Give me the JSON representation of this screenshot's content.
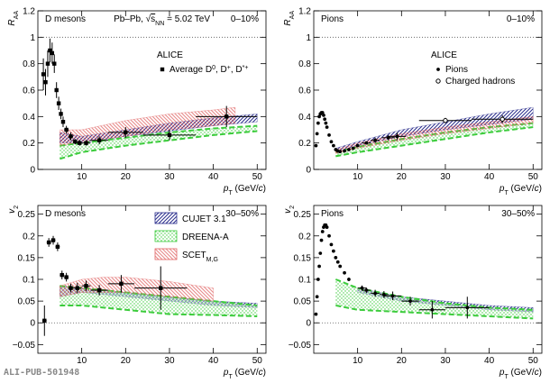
{
  "chart_data": [
    {
      "type": "scatter",
      "title": "D mesons",
      "centrality": "0–10%",
      "system": [
        "Pb–Pb, ",
        "√",
        "s",
        "NN",
        " = 5.02 TeV"
      ],
      "experiment": "ALICE",
      "x_label": [
        "p",
        "T",
        " (GeV/",
        "c",
        ")"
      ],
      "y_label": [
        "R",
        "AA"
      ],
      "xlim": [
        0,
        52
      ],
      "xticks": [
        10,
        20,
        30,
        40,
        50
      ],
      "ylim": [
        0,
        1.2
      ],
      "yticks": [
        0,
        0.2,
        0.4,
        0.6,
        0.8,
        1,
        1.2
      ],
      "reference_line": 1,
      "series": [
        {
          "name": [
            "Average D",
            "0",
            ", D",
            "+",
            ", D",
            "*+"
          ],
          "marker": "square",
          "color": "#000000",
          "x": [
            1.25,
            1.75,
            2.25,
            2.75,
            3.25,
            3.75,
            4.25,
            4.75,
            5.25,
            5.75,
            6.5,
            7.5,
            8.5,
            9.5,
            11,
            14,
            20,
            30,
            43
          ],
          "y": [
            0.72,
            0.66,
            0.8,
            0.9,
            0.88,
            0.8,
            0.6,
            0.5,
            0.42,
            0.36,
            0.3,
            0.25,
            0.21,
            0.2,
            0.2,
            0.22,
            0.28,
            0.26,
            0.4
          ],
          "yerr": [
            0.12,
            0.1,
            0.1,
            0.09,
            0.08,
            0.07,
            0.06,
            0.05,
            0.04,
            0.04,
            0.03,
            0.03,
            0.02,
            0.02,
            0.02,
            0.03,
            0.04,
            0.04,
            0.08
          ],
          "xerr": [
            0.25,
            0.25,
            0.25,
            0.25,
            0.25,
            0.25,
            0.25,
            0.25,
            0.25,
            0.25,
            0.5,
            0.5,
            0.5,
            0.5,
            1,
            2,
            4,
            6,
            7
          ]
        }
      ],
      "bands": [
        {
          "color": "#2a2d8c",
          "fill": "hatch",
          "x": [
            5,
            10,
            20,
            30,
            40,
            50
          ],
          "low": [
            0.2,
            0.2,
            0.25,
            0.29,
            0.33,
            0.36
          ],
          "high": [
            0.28,
            0.25,
            0.3,
            0.35,
            0.39,
            0.42
          ]
        },
        {
          "color": "#3ccc3c",
          "fill": "dots",
          "x": [
            5,
            10,
            20,
            30,
            40,
            50
          ],
          "low": [
            0.08,
            0.13,
            0.18,
            0.22,
            0.26,
            0.29
          ],
          "high": [
            0.18,
            0.2,
            0.24,
            0.28,
            0.31,
            0.33
          ]
        },
        {
          "color": "#e06464",
          "fill": "hatch-back",
          "x": [
            5,
            10,
            20,
            30,
            40,
            45
          ],
          "low": [
            0.18,
            0.21,
            0.25,
            0.3,
            0.33,
            0.35
          ],
          "high": [
            0.3,
            0.3,
            0.37,
            0.42,
            0.45,
            0.47
          ]
        }
      ]
    },
    {
      "type": "scatter",
      "title": "Pions",
      "centrality": "0–10%",
      "experiment": "ALICE",
      "x_label": [
        "p",
        "T",
        " (GeV/",
        "c",
        ")"
      ],
      "y_label": [
        "R",
        "AA"
      ],
      "xlim": [
        0,
        52
      ],
      "xticks": [
        10,
        20,
        30,
        40,
        50
      ],
      "ylim": [
        0,
        1.2
      ],
      "yticks": [
        0,
        0.2,
        0.4,
        0.6,
        0.8,
        1,
        1.2
      ],
      "reference_line": 1,
      "series": [
        {
          "name": "Pions",
          "marker": "circle",
          "color": "#000000",
          "x": [
            0.5,
            0.75,
            1,
            1.25,
            1.5,
            1.75,
            2,
            2.25,
            2.5,
            2.75,
            3,
            3.5,
            4,
            4.5,
            5,
            5.5,
            6,
            7,
            8,
            9,
            10,
            12,
            14,
            17,
            19
          ],
          "y": [
            0.18,
            0.27,
            0.35,
            0.4,
            0.42,
            0.43,
            0.43,
            0.41,
            0.38,
            0.35,
            0.32,
            0.26,
            0.21,
            0.18,
            0.15,
            0.14,
            0.135,
            0.14,
            0.15,
            0.16,
            0.18,
            0.2,
            0.22,
            0.24,
            0.25
          ],
          "yerr": [
            0.01,
            0.01,
            0.01,
            0.01,
            0.01,
            0.01,
            0.01,
            0.01,
            0.01,
            0.01,
            0.01,
            0.01,
            0.01,
            0.01,
            0.01,
            0.01,
            0.01,
            0.01,
            0.01,
            0.01,
            0.01,
            0.01,
            0.02,
            0.02,
            0.03
          ],
          "xerr": [
            0,
            0,
            0,
            0,
            0,
            0,
            0,
            0,
            0,
            0,
            0,
            0,
            0,
            0,
            0,
            0,
            0,
            0,
            0,
            0,
            0,
            1,
            1,
            1.5,
            2
          ]
        },
        {
          "name": "Charged hadrons",
          "marker": "circle-open",
          "color": "#000000",
          "x": [
            30,
            43
          ],
          "y": [
            0.37,
            0.38
          ],
          "yerr": [
            0.02,
            0.03
          ],
          "xerr": [
            6,
            7
          ]
        }
      ],
      "bands": [
        {
          "color": "#2a2d8c",
          "fill": "hatch",
          "x": [
            5,
            10,
            20,
            30,
            40,
            50
          ],
          "low": [
            0.13,
            0.18,
            0.25,
            0.3,
            0.34,
            0.38
          ],
          "high": [
            0.16,
            0.21,
            0.3,
            0.36,
            0.42,
            0.47
          ]
        },
        {
          "color": "#3ccc3c",
          "fill": "dots",
          "x": [
            5,
            10,
            20,
            30,
            40,
            50
          ],
          "low": [
            0.1,
            0.13,
            0.18,
            0.23,
            0.28,
            0.32
          ],
          "high": [
            0.13,
            0.17,
            0.23,
            0.28,
            0.32,
            0.35
          ]
        },
        {
          "color": "#e06464",
          "fill": "hatch-back",
          "x": [
            5,
            10,
            20,
            30,
            40,
            50
          ],
          "low": [
            0.12,
            0.16,
            0.22,
            0.27,
            0.31,
            0.35
          ],
          "high": [
            0.15,
            0.2,
            0.27,
            0.32,
            0.36,
            0.4
          ]
        }
      ]
    },
    {
      "type": "scatter",
      "title": "D mesons",
      "centrality": "30–50%",
      "x_label": [
        "p",
        "T",
        " (GeV/",
        "c",
        ")"
      ],
      "y_label": [
        "v",
        "2"
      ],
      "xlim": [
        0,
        52
      ],
      "xticks": [
        10,
        20,
        30,
        40,
        50
      ],
      "ylim": [
        -0.07,
        0.27
      ],
      "yticks": [
        {
          "value": -0.05,
          "label": "−0.05"
        },
        0,
        0.05,
        0.1,
        0.15,
        0.2,
        0.25
      ],
      "reference_line": 0,
      "series": [
        {
          "marker": "square",
          "color": "#000000",
          "x": [
            1.5,
            2.5,
            3.5,
            4.5,
            5.5,
            6.5,
            7.5,
            9,
            11,
            14,
            19,
            28
          ],
          "y": [
            0.005,
            0.185,
            0.19,
            0.175,
            0.11,
            0.105,
            0.08,
            0.08,
            0.085,
            0.075,
            0.09,
            0.08
          ],
          "yerr": [
            0.035,
            0.01,
            0.01,
            0.01,
            0.01,
            0.01,
            0.01,
            0.012,
            0.012,
            0.012,
            0.02,
            0.05
          ],
          "xerr": [
            0.5,
            0.5,
            0.5,
            0.5,
            0.5,
            0.5,
            0.5,
            1,
            1,
            2,
            3,
            6
          ]
        }
      ],
      "bands": [
        {
          "name": "CUJET 3.1",
          "color": "#2a2d8c",
          "fill": "hatch",
          "x": [
            5,
            10,
            20,
            30,
            40,
            50
          ],
          "low": [
            0.06,
            0.07,
            0.06,
            0.05,
            0.04,
            0.035
          ],
          "high": [
            0.085,
            0.08,
            0.07,
            0.06,
            0.05,
            0.045
          ]
        },
        {
          "name": "DREENA-A",
          "color": "#3ccc3c",
          "fill": "dots",
          "x": [
            5,
            10,
            20,
            30,
            40,
            50
          ],
          "low": [
            0.04,
            0.04,
            0.03,
            0.02,
            0.018,
            0.015
          ],
          "high": [
            0.085,
            0.08,
            0.07,
            0.06,
            0.05,
            0.04
          ]
        },
        {
          "name": [
            "SCET",
            "M,G"
          ],
          "color": "#e06464",
          "fill": "hatch-back",
          "x": [
            5,
            10,
            15,
            20,
            30,
            40
          ],
          "low": [
            0.06,
            0.07,
            0.07,
            0.07,
            0.06,
            0.05
          ],
          "high": [
            0.085,
            0.1,
            0.105,
            0.105,
            0.095,
            0.08
          ]
        }
      ]
    },
    {
      "type": "scatter",
      "title": "Pions",
      "centrality": "30–50%",
      "x_label": [
        "p",
        "T",
        " (GeV/",
        "c",
        ")"
      ],
      "y_label": [
        "v",
        "2"
      ],
      "xlim": [
        0,
        52
      ],
      "xticks": [
        10,
        20,
        30,
        40,
        50
      ],
      "ylim": [
        -0.07,
        0.27
      ],
      "yticks": [
        {
          "value": -0.05,
          "label": "−0.05"
        },
        0,
        0.05,
        0.1,
        0.15,
        0.2,
        0.25
      ],
      "reference_line": 0,
      "series": [
        {
          "marker": "circle",
          "color": "#000000",
          "x": [
            0.5,
            0.75,
            1,
            1.25,
            1.5,
            1.75,
            2,
            2.25,
            2.5,
            2.75,
            3,
            3.5,
            4,
            4.5,
            5,
            5.5,
            6,
            7,
            8,
            11,
            12,
            14,
            16,
            18,
            22,
            27,
            35
          ],
          "y": [
            0.02,
            0.06,
            0.1,
            0.13,
            0.16,
            0.19,
            0.21,
            0.22,
            0.225,
            0.225,
            0.22,
            0.2,
            0.18,
            0.165,
            0.15,
            0.14,
            0.13,
            0.115,
            0.1,
            0.08,
            0.075,
            0.068,
            0.065,
            0.062,
            0.05,
            0.03,
            0.035
          ],
          "yerr": [
            0.002,
            0.002,
            0.002,
            0.002,
            0.002,
            0.002,
            0.002,
            0.002,
            0.002,
            0.002,
            0.002,
            0.002,
            0.002,
            0.002,
            0.002,
            0.002,
            0.002,
            0.003,
            0.004,
            0.006,
            0.006,
            0.008,
            0.008,
            0.01,
            0.01,
            0.02,
            0.025
          ],
          "xerr": [
            0,
            0,
            0,
            0,
            0,
            0,
            0,
            0,
            0,
            0,
            0,
            0,
            0,
            0,
            0,
            0,
            0,
            0,
            0,
            1,
            1,
            1,
            1,
            2,
            2,
            3,
            5
          ]
        }
      ],
      "bands": [
        {
          "color": "#2a2d8c",
          "fill": "hatch",
          "x": [
            10,
            20,
            30,
            40,
            50
          ],
          "low": [
            0.07,
            0.05,
            0.04,
            0.03,
            0.025
          ],
          "high": [
            0.08,
            0.06,
            0.05,
            0.04,
            0.035
          ]
        },
        {
          "color": "#3ccc3c",
          "fill": "dots",
          "x": [
            5,
            10,
            20,
            30,
            40,
            50
          ],
          "low": [
            0.04,
            0.03,
            0.025,
            0.02,
            0.015,
            0.01
          ],
          "high": [
            0.1,
            0.08,
            0.06,
            0.045,
            0.035,
            0.03
          ]
        }
      ]
    }
  ],
  "watermark": "ALI-PUB-501948"
}
